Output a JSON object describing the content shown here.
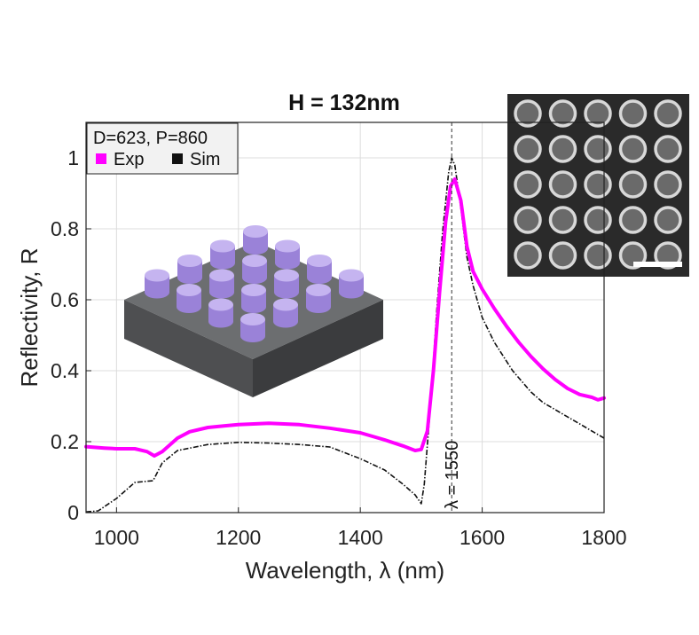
{
  "chart_data": {
    "type": "line",
    "title": "H = 132nm",
    "xlabel": "Wavelength, λ (nm)",
    "ylabel": "Reflectivity, R",
    "xlim": [
      950,
      1800
    ],
    "ylim": [
      0,
      1.1
    ],
    "xticks": [
      1000,
      1200,
      1400,
      1600,
      1800
    ],
    "yticks": [
      0,
      0.2,
      0.4,
      0.6,
      0.8,
      1
    ],
    "xtick_labels": [
      "1000",
      "1200",
      "1400",
      "1600",
      "1800"
    ],
    "ytick_labels": [
      "0",
      "0.2",
      "0.4",
      "0.6",
      "0.8",
      "1"
    ],
    "grid": true,
    "legend": {
      "position": "top-left",
      "header": "D=623, P=860",
      "entries": [
        "Exp",
        "Sim"
      ]
    },
    "annotation": {
      "text": "λ = 1550",
      "x": 1550
    },
    "series": [
      {
        "name": "Exp",
        "color": "#ff00ff",
        "style": "solid",
        "points": [
          [
            950,
            0.186
          ],
          [
            980,
            0.182
          ],
          [
            1000,
            0.18
          ],
          [
            1030,
            0.18
          ],
          [
            1050,
            0.172
          ],
          [
            1062,
            0.16
          ],
          [
            1075,
            0.172
          ],
          [
            1100,
            0.21
          ],
          [
            1120,
            0.228
          ],
          [
            1150,
            0.24
          ],
          [
            1180,
            0.245
          ],
          [
            1200,
            0.248
          ],
          [
            1250,
            0.252
          ],
          [
            1300,
            0.248
          ],
          [
            1350,
            0.238
          ],
          [
            1400,
            0.225
          ],
          [
            1440,
            0.205
          ],
          [
            1470,
            0.188
          ],
          [
            1490,
            0.175
          ],
          [
            1500,
            0.178
          ],
          [
            1510,
            0.23
          ],
          [
            1520,
            0.4
          ],
          [
            1530,
            0.62
          ],
          [
            1540,
            0.82
          ],
          [
            1548,
            0.92
          ],
          [
            1555,
            0.94
          ],
          [
            1565,
            0.88
          ],
          [
            1575,
            0.75
          ],
          [
            1585,
            0.68
          ],
          [
            1600,
            0.63
          ],
          [
            1620,
            0.575
          ],
          [
            1640,
            0.525
          ],
          [
            1660,
            0.48
          ],
          [
            1680,
            0.44
          ],
          [
            1700,
            0.405
          ],
          [
            1720,
            0.375
          ],
          [
            1740,
            0.35
          ],
          [
            1760,
            0.333
          ],
          [
            1780,
            0.325
          ],
          [
            1790,
            0.318
          ],
          [
            1800,
            0.323
          ]
        ]
      },
      {
        "name": "Sim",
        "color": "#111111",
        "style": "dashdot",
        "points": [
          [
            950,
            0.002
          ],
          [
            970,
            0.005
          ],
          [
            1000,
            0.04
          ],
          [
            1030,
            0.085
          ],
          [
            1060,
            0.09
          ],
          [
            1075,
            0.14
          ],
          [
            1100,
            0.175
          ],
          [
            1150,
            0.192
          ],
          [
            1200,
            0.198
          ],
          [
            1250,
            0.196
          ],
          [
            1300,
            0.192
          ],
          [
            1350,
            0.185
          ],
          [
            1400,
            0.152
          ],
          [
            1440,
            0.12
          ],
          [
            1470,
            0.08
          ],
          [
            1490,
            0.05
          ],
          [
            1500,
            0.025
          ],
          [
            1505,
            0.08
          ],
          [
            1515,
            0.3
          ],
          [
            1525,
            0.56
          ],
          [
            1535,
            0.79
          ],
          [
            1545,
            0.96
          ],
          [
            1550,
            1.0
          ],
          [
            1555,
            0.98
          ],
          [
            1565,
            0.86
          ],
          [
            1575,
            0.72
          ],
          [
            1585,
            0.64
          ],
          [
            1600,
            0.55
          ],
          [
            1620,
            0.48
          ],
          [
            1650,
            0.4
          ],
          [
            1680,
            0.34
          ],
          [
            1700,
            0.31
          ],
          [
            1730,
            0.28
          ],
          [
            1760,
            0.25
          ],
          [
            1800,
            0.21
          ]
        ]
      }
    ]
  }
}
